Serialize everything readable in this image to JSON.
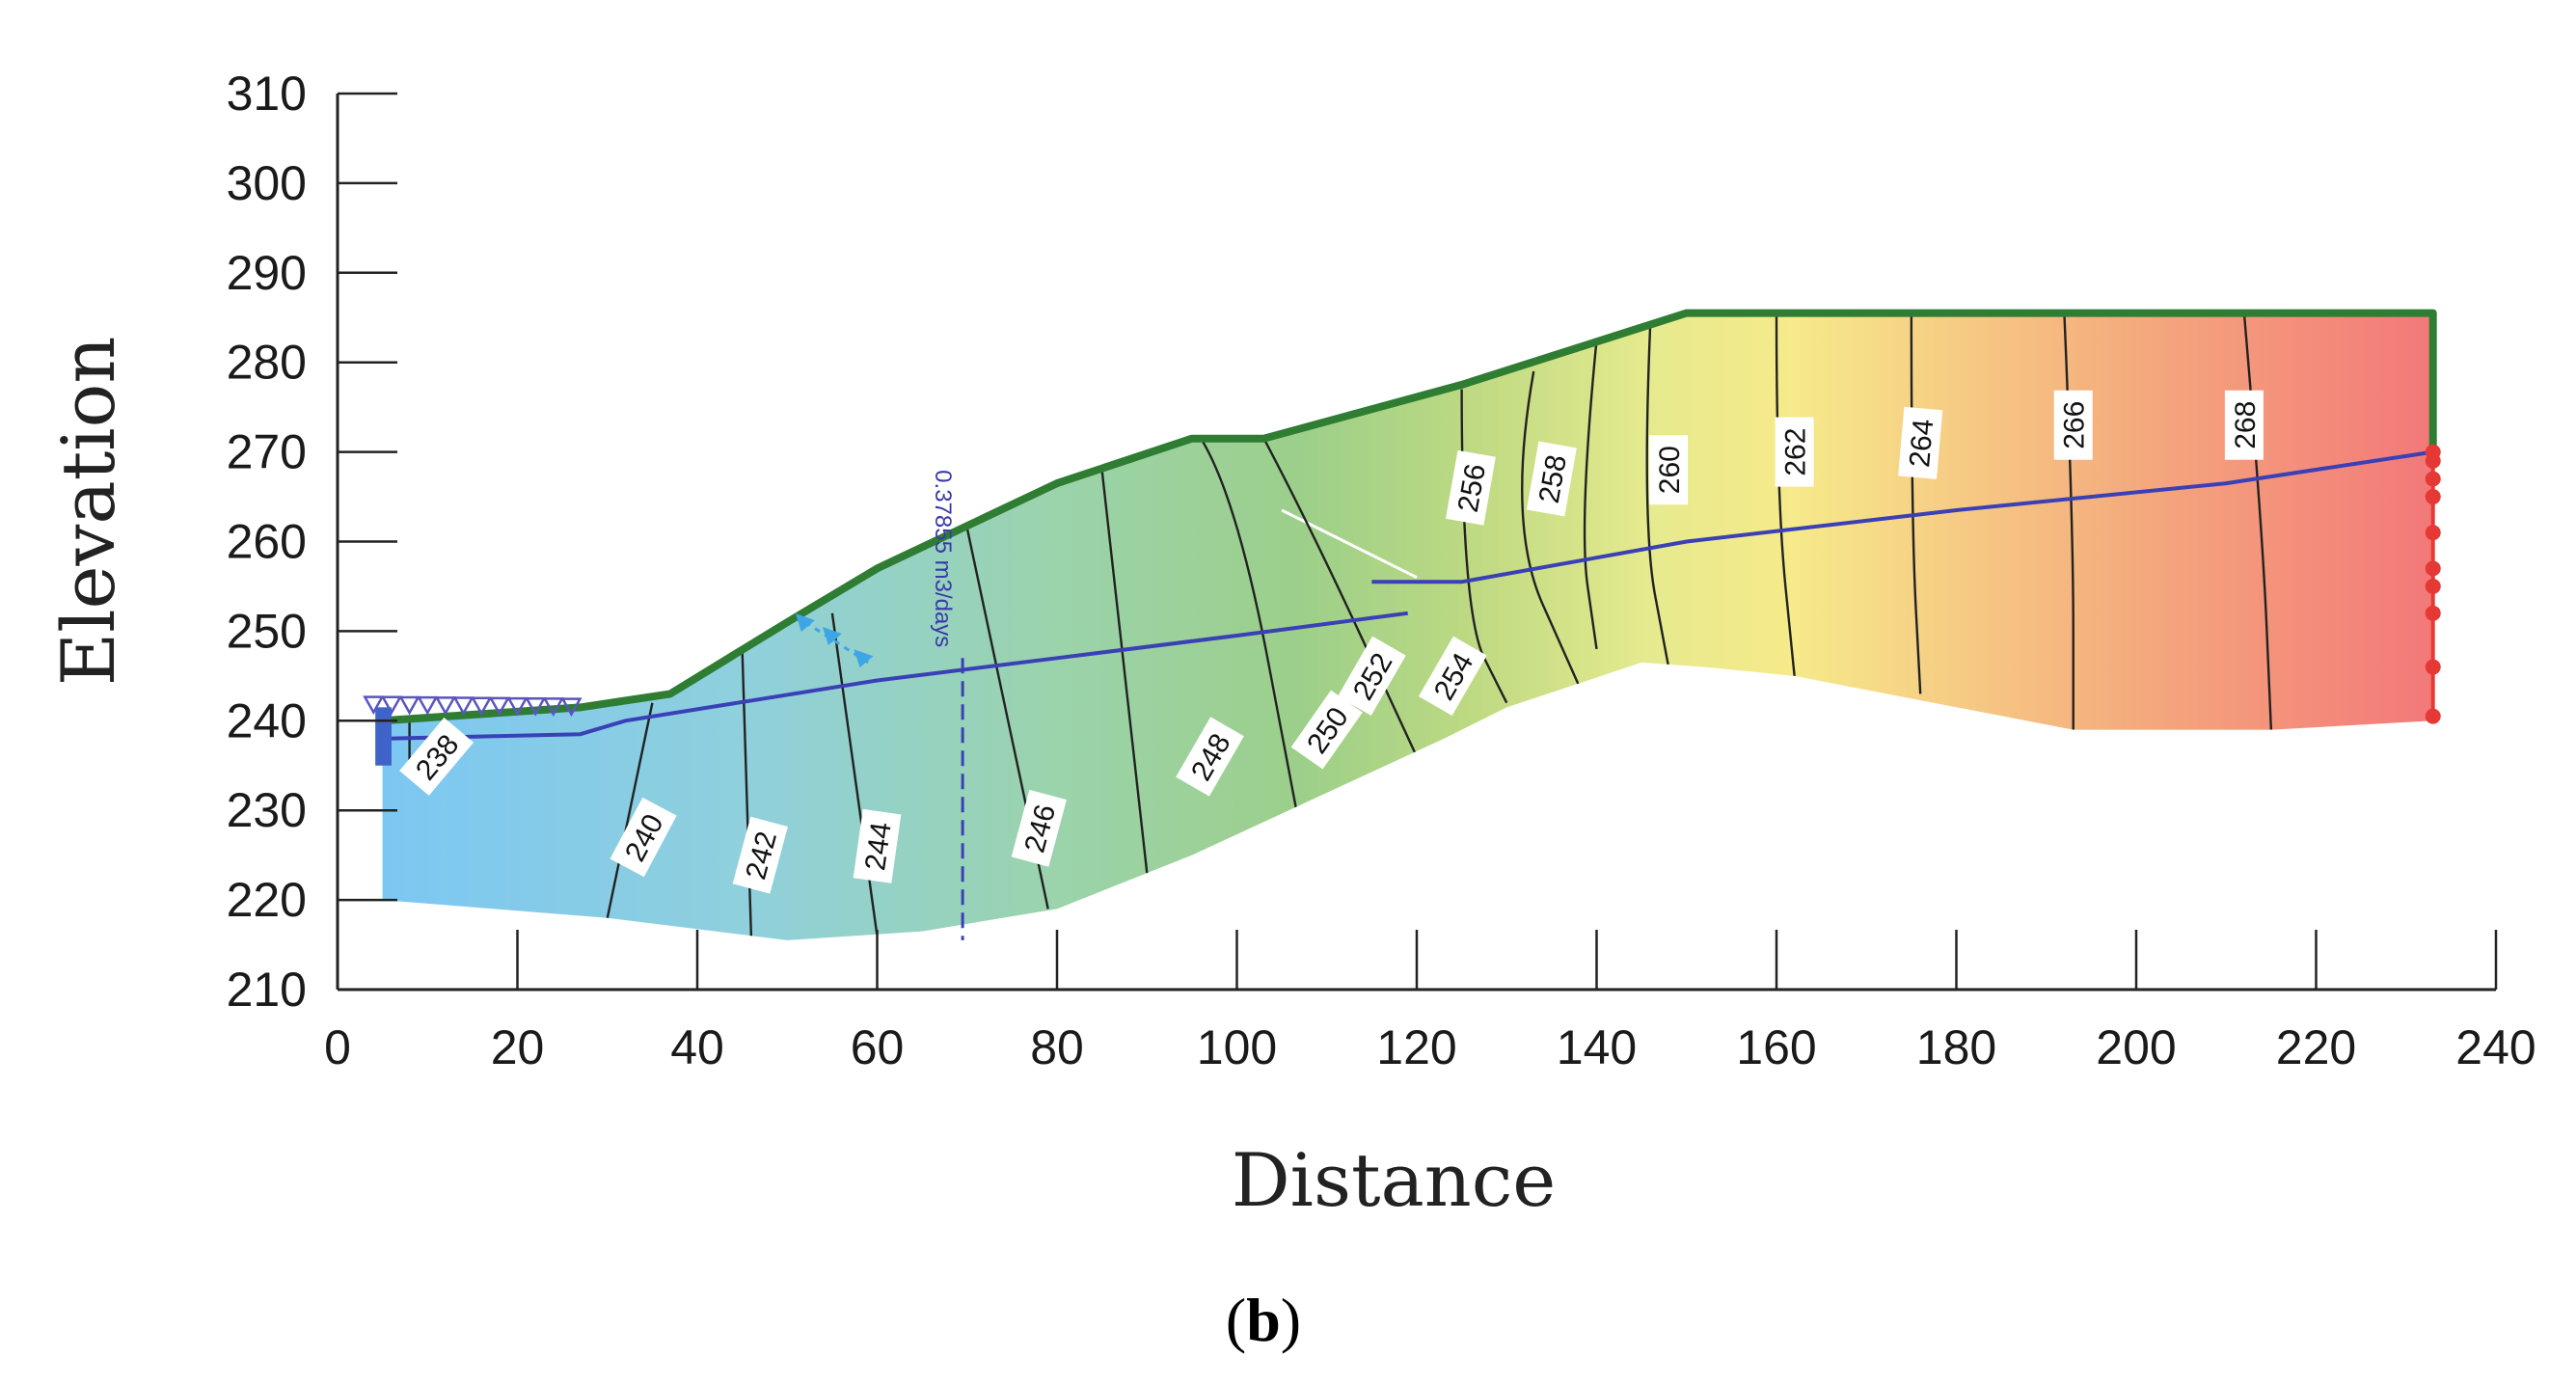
{
  "caption": {
    "open": "(",
    "letter": "b",
    "close": ")"
  },
  "chart_data": {
    "type": "contour",
    "xlabel": "Distance",
    "ylabel": "Elevation",
    "xlim": [
      0,
      240
    ],
    "ylim": [
      210,
      310
    ],
    "xticks": [
      0,
      20,
      40,
      60,
      80,
      100,
      120,
      140,
      160,
      180,
      200,
      220,
      240
    ],
    "yticks": [
      210,
      220,
      230,
      240,
      250,
      260,
      270,
      280,
      290,
      300,
      310
    ],
    "ground_surface": [
      [
        5,
        240
      ],
      [
        27,
        241.5
      ],
      [
        37,
        243
      ],
      [
        50,
        251
      ],
      [
        60,
        257
      ],
      [
        80,
        266.5
      ],
      [
        95,
        271.5
      ],
      [
        103,
        271.5
      ],
      [
        125,
        277.5
      ],
      [
        150,
        285.5
      ],
      [
        233,
        285.5
      ],
      [
        233,
        270
      ]
    ],
    "bottom_boundary": [
      [
        5,
        240
      ],
      [
        5,
        220
      ],
      [
        30,
        218
      ],
      [
        50,
        215.5
      ],
      [
        65,
        216.5
      ],
      [
        80,
        219
      ],
      [
        95,
        225
      ],
      [
        123,
        238
      ]
    ],
    "right_region_bottom": [
      [
        130,
        241.5
      ],
      [
        145,
        246.5
      ],
      [
        152,
        246
      ],
      [
        162,
        245
      ],
      [
        193,
        239
      ],
      [
        215,
        239
      ],
      [
        233,
        240
      ]
    ],
    "water_table": [
      [
        5,
        238
      ],
      [
        27,
        238.5
      ],
      [
        32,
        240
      ],
      [
        60,
        244.5
      ],
      [
        80,
        247
      ],
      [
        100,
        249.5
      ],
      [
        119,
        252
      ]
    ],
    "water_table_upper": [
      [
        115,
        255.5
      ],
      [
        125,
        255.5
      ],
      [
        150,
        260
      ],
      [
        180,
        263.5
      ],
      [
        210,
        266.5
      ],
      [
        233,
        270
      ]
    ],
    "contours": [
      {
        "level": 238,
        "points": [
          [
            8,
            243
          ],
          [
            8,
            234
          ]
        ]
      },
      {
        "level": 240,
        "points": [
          [
            35,
            242
          ],
          [
            30,
            218
          ]
        ]
      },
      {
        "level": 242,
        "points": [
          [
            45,
            248
          ],
          [
            46,
            215.5
          ]
        ]
      },
      {
        "level": 244,
        "points": [
          [
            55,
            252
          ],
          [
            60,
            216
          ]
        ]
      },
      {
        "level": 246,
        "points": [
          [
            70,
            261.5
          ],
          [
            79,
            219
          ]
        ]
      },
      {
        "level": 248,
        "points": [
          [
            85,
            268
          ],
          [
            90,
            223
          ]
        ]
      },
      {
        "level": 250,
        "points": [
          [
            96,
            271.5
          ],
          [
            100,
            265
          ],
          [
            107,
            228
          ]
        ]
      },
      {
        "level": 252,
        "points": [
          [
            103,
            271.5
          ],
          [
            108,
            262
          ],
          [
            120,
            236
          ]
        ]
      },
      {
        "level": 254,
        "points": [
          [
            125,
            277
          ],
          [
            125,
            252
          ],
          [
            130,
            242
          ]
        ]
      },
      {
        "level": 256,
        "points": [
          [
            133,
            279
          ],
          [
            130,
            262
          ],
          [
            138,
            244
          ]
        ]
      },
      {
        "level": 258,
        "points": [
          [
            140,
            282.5
          ],
          [
            138,
            262
          ],
          [
            140,
            248
          ]
        ]
      },
      {
        "level": 260,
        "points": [
          [
            146,
            285
          ],
          [
            145,
            262
          ],
          [
            148,
            246
          ]
        ]
      },
      {
        "level": 262,
        "points": [
          [
            160,
            285.5
          ],
          [
            160,
            265
          ],
          [
            162,
            245
          ]
        ]
      },
      {
        "level": 264,
        "points": [
          [
            175,
            285.5
          ],
          [
            175,
            262
          ],
          [
            176,
            243
          ]
        ]
      },
      {
        "level": 266,
        "points": [
          [
            192,
            285.5
          ],
          [
            193,
            262
          ],
          [
            193,
            239
          ]
        ]
      },
      {
        "level": 268,
        "points": [
          [
            212,
            285.5
          ],
          [
            214,
            262
          ],
          [
            215,
            239
          ]
        ]
      }
    ],
    "contour_labels": [
      {
        "text": "238",
        "x": 11,
        "y": 236,
        "angle": -50
      },
      {
        "text": "240",
        "x": 34,
        "y": 227,
        "angle": -62
      },
      {
        "text": "242",
        "x": 47,
        "y": 225,
        "angle": -75
      },
      {
        "text": "244",
        "x": 60,
        "y": 226,
        "angle": -82
      },
      {
        "text": "246",
        "x": 78,
        "y": 228,
        "angle": -75
      },
      {
        "text": "248",
        "x": 97,
        "y": 236,
        "angle": -60
      },
      {
        "text": "250",
        "x": 110,
        "y": 239,
        "angle": -55
      },
      {
        "text": "252",
        "x": 115,
        "y": 245,
        "angle": -60
      },
      {
        "text": "254",
        "x": 124,
        "y": 245,
        "angle": -60
      },
      {
        "text": "256",
        "x": 126,
        "y": 266,
        "angle": -80
      },
      {
        "text": "258",
        "x": 135,
        "y": 267,
        "angle": -80
      },
      {
        "text": "260",
        "x": 148,
        "y": 268,
        "angle": -90
      },
      {
        "text": "262",
        "x": 162,
        "y": 270,
        "angle": -90
      },
      {
        "text": "264",
        "x": 176,
        "y": 271,
        "angle": -85
      },
      {
        "text": "266",
        "x": 193,
        "y": 273,
        "angle": -90
      },
      {
        "text": "268",
        "x": 212,
        "y": 273,
        "angle": -90
      }
    ],
    "flux_section": {
      "label": "0.37855 m3/days",
      "x": 69.5,
      "y_top": 268,
      "y_bottom": 215.5
    },
    "seepage_face_x": 233,
    "seepage_face_points": [
      [
        233,
        240.5
      ],
      [
        233,
        246
      ],
      [
        233,
        252
      ],
      [
        233,
        255
      ],
      [
        233,
        257
      ],
      [
        233,
        261
      ],
      [
        233,
        265
      ],
      [
        233,
        267
      ],
      [
        233,
        269
      ],
      [
        233,
        270
      ]
    ],
    "colors": {
      "ground_line": "#2e7d32",
      "water_table": "#3a40b5",
      "contour_line": "#222222",
      "boundary_points": "#e53935",
      "flux_line": "#3a40b5",
      "zone_low": "#7ec8f2",
      "zone_mid": "#9ad3a8",
      "zone_mid_high": "#b8d880",
      "zone_yellow": "#f2ea8a",
      "zone_orange": "#f5b07a",
      "zone_high": "#f27c7c"
    }
  }
}
